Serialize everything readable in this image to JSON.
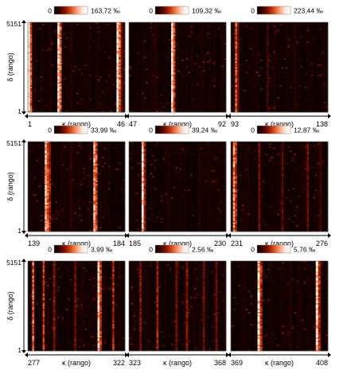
{
  "chart_data": {
    "type": "heatmap",
    "colormap": [
      "#000000",
      "#3a0400",
      "#8a1400",
      "#d94a1a",
      "#ff9a6a",
      "#ffe6dc",
      "#ffffff"
    ],
    "ylabel": "δ (rango)",
    "xlabel": "κ (rango)",
    "y_range_labels": [
      "1",
      "5151"
    ],
    "panels": [
      {
        "scale_min": "0",
        "scale_max": "163,72 ‰",
        "x_range": [
          "1",
          "46"
        ],
        "n_cols": 46,
        "stripes": [
          {
            "col": 0,
            "v": 1.0
          },
          {
            "col": 1,
            "v": 0.55
          },
          {
            "col": 14,
            "v": 0.9
          },
          {
            "col": 15,
            "v": 0.6
          },
          {
            "col": 42,
            "v": 0.95
          },
          {
            "col": 43,
            "v": 0.6
          },
          {
            "col": 44,
            "v": 0.3
          },
          {
            "col": 20,
            "v": 0.12
          },
          {
            "col": 28,
            "v": 0.08
          }
        ]
      },
      {
        "scale_min": "0",
        "scale_max": "109,32 ‰",
        "x_range": [
          "47",
          "92"
        ],
        "n_cols": 46,
        "stripes": [
          {
            "col": 20,
            "v": 0.95
          },
          {
            "col": 21,
            "v": 0.5
          },
          {
            "col": 12,
            "v": 0.12
          },
          {
            "col": 34,
            "v": 0.1
          }
        ]
      },
      {
        "scale_min": "0",
        "scale_max": "223,44 ‰",
        "x_range": [
          "93",
          "138"
        ],
        "n_cols": 46,
        "stripes": [
          {
            "col": 2,
            "v": 0.55
          },
          {
            "col": 3,
            "v": 0.3
          },
          {
            "col": 17,
            "v": 0.2
          },
          {
            "col": 30,
            "v": 0.12
          }
        ]
      },
      {
        "scale_min": "0",
        "scale_max": "33,99 ‰",
        "x_range": [
          "139",
          "184"
        ],
        "n_cols": 46,
        "stripes": [
          {
            "col": 8,
            "v": 0.8
          },
          {
            "col": 9,
            "v": 0.6
          },
          {
            "col": 10,
            "v": 0.4
          },
          {
            "col": 31,
            "v": 0.75
          },
          {
            "col": 32,
            "v": 0.55
          },
          {
            "col": 20,
            "v": 0.15
          }
        ]
      },
      {
        "scale_min": "0",
        "scale_max": "39,24 ‰",
        "x_range": [
          "185",
          "230"
        ],
        "n_cols": 46,
        "stripes": [
          {
            "col": 6,
            "v": 0.9
          },
          {
            "col": 7,
            "v": 0.4
          },
          {
            "col": 18,
            "v": 0.1
          },
          {
            "col": 33,
            "v": 0.12
          }
        ]
      },
      {
        "scale_min": "0",
        "scale_max": "12,87 ‰",
        "x_range": [
          "231",
          "276"
        ],
        "n_cols": 46,
        "stripes": [
          {
            "col": 1,
            "v": 0.7
          },
          {
            "col": 2,
            "v": 0.45
          },
          {
            "col": 13,
            "v": 0.3
          },
          {
            "col": 24,
            "v": 0.25
          },
          {
            "col": 36,
            "v": 0.3
          },
          {
            "col": 42,
            "v": 0.2
          }
        ]
      },
      {
        "scale_min": "0",
        "scale_max": "3,99 ‰",
        "x_range": [
          "277",
          "322"
        ],
        "n_cols": 46,
        "stripes": [
          {
            "col": 2,
            "v": 0.6
          },
          {
            "col": 7,
            "v": 0.5
          },
          {
            "col": 12,
            "v": 0.35
          },
          {
            "col": 33,
            "v": 0.85
          },
          {
            "col": 34,
            "v": 0.5
          },
          {
            "col": 40,
            "v": 0.45
          },
          {
            "col": 22,
            "v": 0.3
          }
        ]
      },
      {
        "scale_min": "0",
        "scale_max": "2,56 ‰",
        "x_range": [
          "323",
          "368"
        ],
        "n_cols": 46,
        "stripes": [
          {
            "col": 5,
            "v": 0.35
          },
          {
            "col": 13,
            "v": 0.4
          },
          {
            "col": 22,
            "v": 0.3
          },
          {
            "col": 27,
            "v": 0.35
          },
          {
            "col": 35,
            "v": 0.3
          },
          {
            "col": 41,
            "v": 0.3
          }
        ]
      },
      {
        "scale_min": "0",
        "scale_max": "5,76 ‰",
        "x_range": [
          "369",
          "408"
        ],
        "n_cols": 40,
        "stripes": [
          {
            "col": 11,
            "v": 0.9
          },
          {
            "col": 12,
            "v": 0.45
          },
          {
            "col": 35,
            "v": 0.85
          },
          {
            "col": 36,
            "v": 0.45
          },
          {
            "col": 24,
            "v": 0.12
          }
        ]
      }
    ]
  }
}
